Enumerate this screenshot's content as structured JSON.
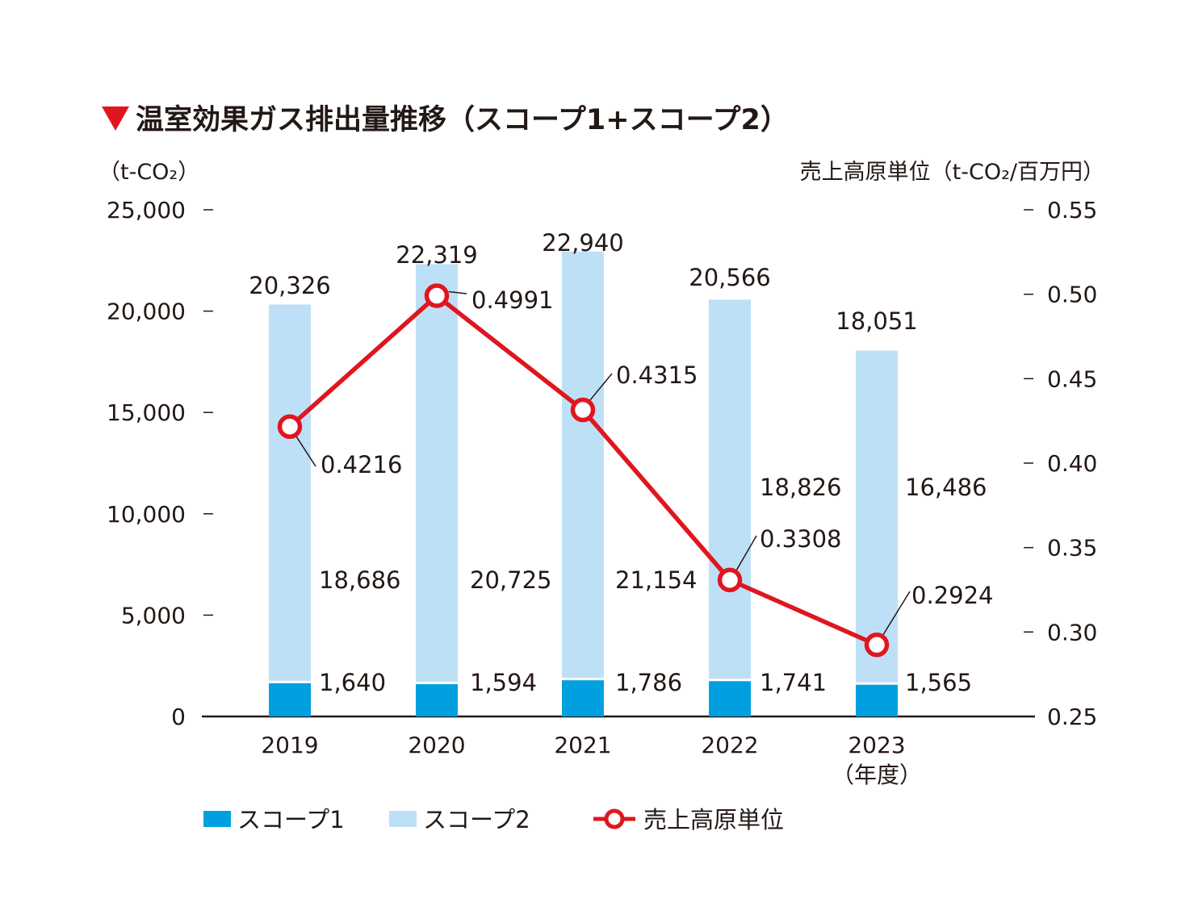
{
  "chart_data": {
    "type": "bar",
    "title": "温室効果ガス排出量推移（スコープ1+スコープ2）",
    "y_left_unit": "（t-CO₂）",
    "y_right_unit": "売上高原単位（t-CO₂/百万円）",
    "x_unit": "（年度）",
    "categories": [
      "2019",
      "2020",
      "2021",
      "2022",
      "2023"
    ],
    "y_left_ticks": [
      "0",
      "5,000",
      "10,000",
      "15,000",
      "20,000",
      "25,000"
    ],
    "y_right_ticks": [
      "0.25",
      "0.30",
      "0.35",
      "0.40",
      "0.45",
      "0.50",
      "0.55"
    ],
    "ylim": [
      0,
      25000
    ],
    "y2lim": [
      0.25,
      0.55
    ],
    "series": [
      {
        "name": "スコープ1",
        "color": "#00A0E0",
        "values": [
          1640,
          1594,
          1786,
          1741,
          1565
        ],
        "labels": [
          "1,640",
          "1,594",
          "1,786",
          "1,741",
          "1,565"
        ]
      },
      {
        "name": "スコープ2",
        "color": "#BEE0F6",
        "values": [
          18686,
          20725,
          21154,
          18826,
          16486
        ],
        "labels": [
          "18,686",
          "20,725",
          "21,154",
          "18,826",
          "16,486"
        ]
      },
      {
        "name": "売上高原単位",
        "color": "#E0161F",
        "axis": "right",
        "values": [
          0.4216,
          0.4991,
          0.4315,
          0.3308,
          0.2924
        ],
        "labels": [
          "0.4216",
          "0.4991",
          "0.4315",
          "0.3308",
          "0.2924"
        ]
      }
    ],
    "totals": [
      20326,
      22319,
      22940,
      20566,
      18051
    ],
    "total_labels": [
      "20,326",
      "22,319",
      "22,940",
      "20,566",
      "18,051"
    ],
    "legend_position": "bottom",
    "grid": false
  }
}
